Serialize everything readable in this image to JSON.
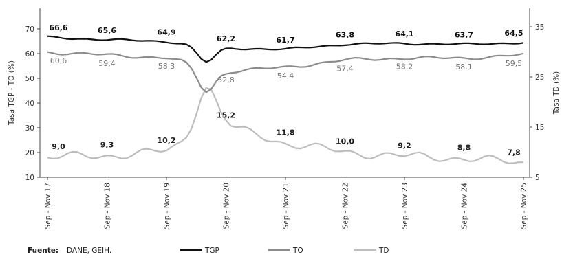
{
  "chart_data": {
    "type": "line",
    "source_label": "Fuente:",
    "source_text": "DANE, GEIH.",
    "y_left_label": "Tasa TGP - TO (%)",
    "y_right_label": "Tasa TD (%)",
    "y_left_ticks": [
      10,
      20,
      30,
      40,
      50,
      60,
      70
    ],
    "y_right_ticks": [
      5,
      15,
      25,
      35
    ],
    "ylim_left": [
      10,
      70
    ],
    "ylim_right": [
      5,
      37
    ],
    "categories": [
      "Sep - Nov 17",
      "Sep - Nov 18",
      "Sep - Nov 19",
      "Sep - Nov 20",
      "Sep - Nov 21",
      "Sep - Nov 22",
      "Sep - Nov 23",
      "Sep - Nov 24",
      "Sep - Nov 25"
    ],
    "legend": [
      "TGP",
      "TO",
      "TD"
    ],
    "series": [
      {
        "name": "TGP",
        "axis": "left",
        "color": "#111111",
        "values": [
          66.6,
          65.6,
          64.9,
          62.2,
          61.7,
          63.8,
          64.1,
          63.7,
          64.5
        ],
        "labels": [
          "66,6",
          "65,6",
          "64,9",
          "62,2",
          "61,7",
          "63,8",
          "64,1",
          "63,7",
          "64,5"
        ]
      },
      {
        "name": "TO",
        "axis": "left",
        "color": "#8c8c8c",
        "values": [
          60.6,
          59.4,
          58.3,
          52.8,
          54.4,
          57.4,
          58.2,
          58.1,
          59.5
        ],
        "labels": [
          "60,6",
          "59,4",
          "58,3",
          "52,8",
          "54,4",
          "57,4",
          "58,2",
          "58,1",
          "59,5"
        ]
      },
      {
        "name": "TD",
        "axis": "right",
        "color": "#bdbdbd",
        "values": [
          9.0,
          9.3,
          10.2,
          15.2,
          11.8,
          10.0,
          9.2,
          8.8,
          7.8
        ],
        "labels": [
          "9,0",
          "9,3",
          "10,2",
          "15,2",
          "11,8",
          "10,0",
          "9,2",
          "8,8",
          "7,8"
        ]
      }
    ]
  }
}
